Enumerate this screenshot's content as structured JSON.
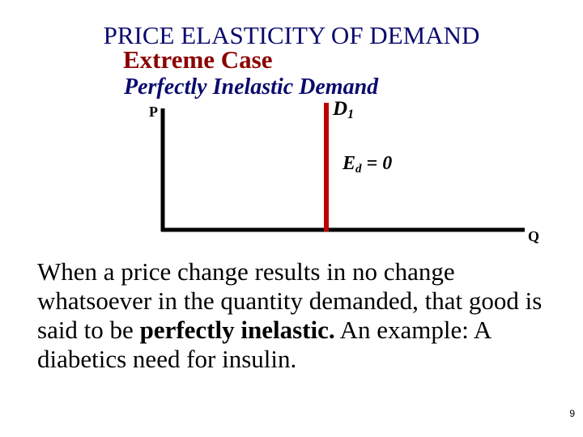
{
  "title": "PRICE ELASTICITY OF DEMAND",
  "subtitle": "Extreme Case",
  "case_label": "Perfectly Inelastic Demand",
  "diagram": {
    "y_axis_label": "P",
    "x_axis_label": "Q",
    "curve_label": "D",
    "curve_subscript": "1",
    "elasticity_label": "E",
    "elasticity_subscript": "d",
    "elasticity_value": "= 0",
    "colors": {
      "axes": "#000000",
      "demand_curve": "#c00000"
    }
  },
  "body": {
    "text_before": "When a price change results in no change whatsoever in the quantity demanded, that good is said to be ",
    "bold_text": "perfectly inelastic.",
    "text_after": " An example: A diabetics need for insulin."
  },
  "page_number": "9",
  "colors": {
    "title": "#0a0a6e",
    "subtitle": "#8b0000",
    "case_label": "#0a0a6e"
  }
}
